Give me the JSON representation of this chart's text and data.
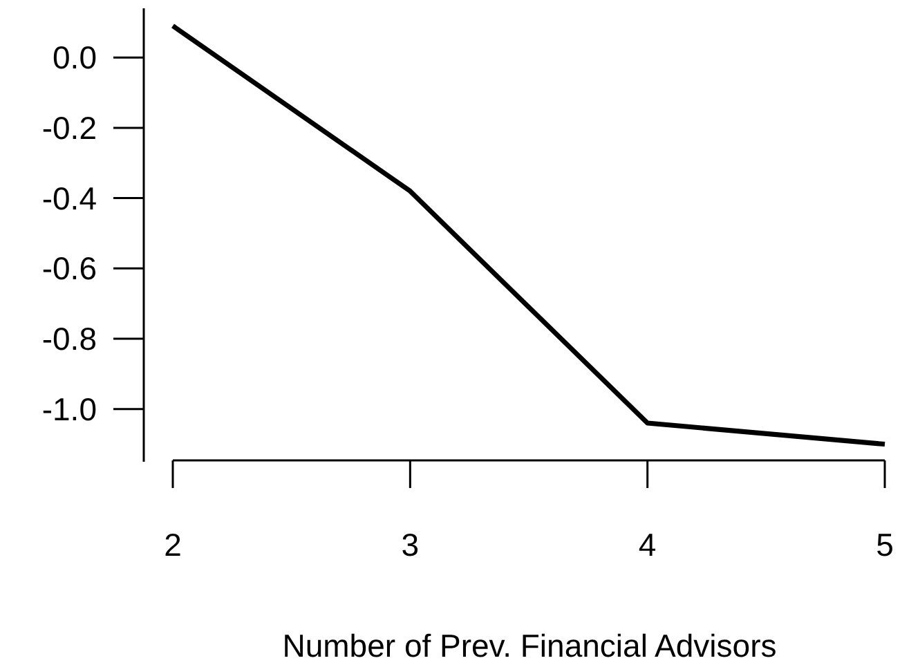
{
  "chart_data": {
    "type": "line",
    "xlabel": "Number of Prev. Financial Advisors",
    "x": [
      2,
      3,
      4,
      5
    ],
    "values": [
      0.09,
      -0.38,
      -1.04,
      -1.1
    ],
    "color": "#000000",
    "xlim": [
      2,
      5
    ],
    "xticks": [
      2,
      3,
      4,
      5
    ],
    "ylim": [
      -1.15,
      0.14
    ],
    "yticks": [
      {
        "value": 0,
        "label": "0.0"
      },
      -0.2,
      -0.4,
      -0.6,
      -0.8,
      {
        "value": -1,
        "label": "-1.0"
      }
    ],
    "grid": false,
    "marker": "none",
    "line_style": "solid"
  }
}
